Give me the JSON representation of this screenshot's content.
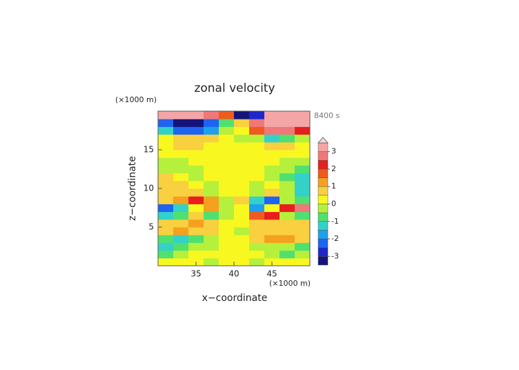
{
  "chart_data": {
    "type": "contour",
    "title": "zonal velocity",
    "x_unit": "(×1000 m)",
    "y_unit": "(×1000 m)",
    "time_label": "8400 s",
    "x_label": "x−coordinate",
    "y_label": "z−coordinate",
    "xlim": [
      30,
      50
    ],
    "ylim": [
      0,
      20
    ],
    "xticks": [
      35,
      40,
      45
    ],
    "yticks": [
      5,
      10,
      15
    ],
    "x": [
      31,
      33,
      35,
      37,
      39,
      41,
      43,
      45,
      47,
      49
    ],
    "y": [
      0.5,
      1.5,
      2.5,
      3.5,
      4.5,
      5.5,
      6.5,
      7.5,
      8.5,
      9.5,
      10.5,
      11.5,
      12.5,
      13.5,
      14.5,
      15.5,
      16.5,
      17.5,
      18.5,
      19.5
    ],
    "values": [
      [
        0.2,
        0.2,
        0.3,
        -0.3,
        0.2,
        0.2,
        -0.3,
        0.2,
        0.3,
        0.2
      ],
      [
        -0.6,
        -0.3,
        0.3,
        0.3,
        0.2,
        0.2,
        0.3,
        -0.3,
        -0.6,
        -0.3
      ],
      [
        -1.3,
        -0.6,
        -0.3,
        -0.3,
        0.2,
        0.2,
        -0.3,
        -0.5,
        -0.3,
        -0.6
      ],
      [
        -0.8,
        -1.2,
        -0.8,
        -0.3,
        0.2,
        0.2,
        0.8,
        1.2,
        1.0,
        0.6
      ],
      [
        0.8,
        1.0,
        0.8,
        0.5,
        0.2,
        -0.3,
        0.5,
        0.7,
        0.5,
        0.5
      ],
      [
        0.8,
        0.6,
        1.0,
        0.5,
        0.2,
        0.2,
        0.6,
        0.8,
        0.7,
        0.5
      ],
      [
        -1.2,
        -0.8,
        0.5,
        -1.0,
        -0.2,
        0.2,
        1.5,
        2.0,
        -0.3,
        -0.8
      ],
      [
        -2.5,
        -1.5,
        0.2,
        1.2,
        -0.3,
        0.3,
        -1.8,
        0.2,
        2.0,
        2.5
      ],
      [
        0.7,
        1.2,
        2.2,
        1.0,
        -0.5,
        0.5,
        -1.2,
        -2.2,
        -0.5,
        -1.0
      ],
      [
        0.8,
        0.8,
        0.5,
        -0.3,
        0.2,
        0.2,
        -0.3,
        0.5,
        -0.3,
        -1.5
      ],
      [
        0.8,
        0.7,
        0.2,
        -0.2,
        0.2,
        0.2,
        -0.2,
        0.3,
        -0.5,
        -1.5
      ],
      [
        0.6,
        0.3,
        -0.2,
        0.2,
        0.2,
        0.2,
        0.3,
        -0.3,
        -0.6,
        -1.2
      ],
      [
        -0.3,
        -0.3,
        -0.2,
        0.2,
        0.1,
        0.1,
        0.2,
        -0.2,
        -0.4,
        -0.8
      ],
      [
        -0.3,
        -0.2,
        0.2,
        0.2,
        0.1,
        0.1,
        0.2,
        0.2,
        -0.2,
        -0.5
      ],
      [
        0.2,
        0.3,
        0.3,
        0.2,
        0.2,
        0.2,
        0.2,
        0.3,
        0.3,
        0.2
      ],
      [
        0.4,
        0.7,
        0.7,
        0.4,
        0.2,
        0.2,
        0.4,
        0.7,
        0.7,
        0.4
      ],
      [
        0.3,
        0.6,
        0.8,
        0.5,
        0.2,
        -0.2,
        -0.5,
        -1.2,
        -0.8,
        -0.3
      ],
      [
        -1.5,
        -2.2,
        -2.5,
        -1.8,
        -0.3,
        0.3,
        1.8,
        2.5,
        2.8,
        2.0
      ],
      [
        -2.5,
        -3.2,
        -3.5,
        -2.5,
        -0.8,
        0.8,
        2.5,
        3.2,
        3.4,
        3.0
      ],
      [
        3.2,
        3.2,
        3.2,
        2.8,
        1.5,
        -3.2,
        -2.8,
        3.2,
        3.2,
        3.2
      ]
    ],
    "levels": [
      -3.5,
      -3,
      -2.5,
      -2,
      -1.5,
      -1,
      -0.5,
      0,
      0.5,
      1,
      1.5,
      2,
      2.5,
      3,
      3.5
    ],
    "colors": [
      "#14147a",
      "#1e28c8",
      "#1e64f0",
      "#1ea0f0",
      "#32d2c8",
      "#50e070",
      "#b4f03c",
      "#f8f820",
      "#f8d040",
      "#f5a01e",
      "#f05a1e",
      "#e81e1e",
      "#f07878",
      "#f4a6a6"
    ],
    "over_color": "#f8d8d8",
    "cbar_ticks": [
      -3,
      -2,
      -1,
      0,
      1,
      2,
      3
    ]
  }
}
